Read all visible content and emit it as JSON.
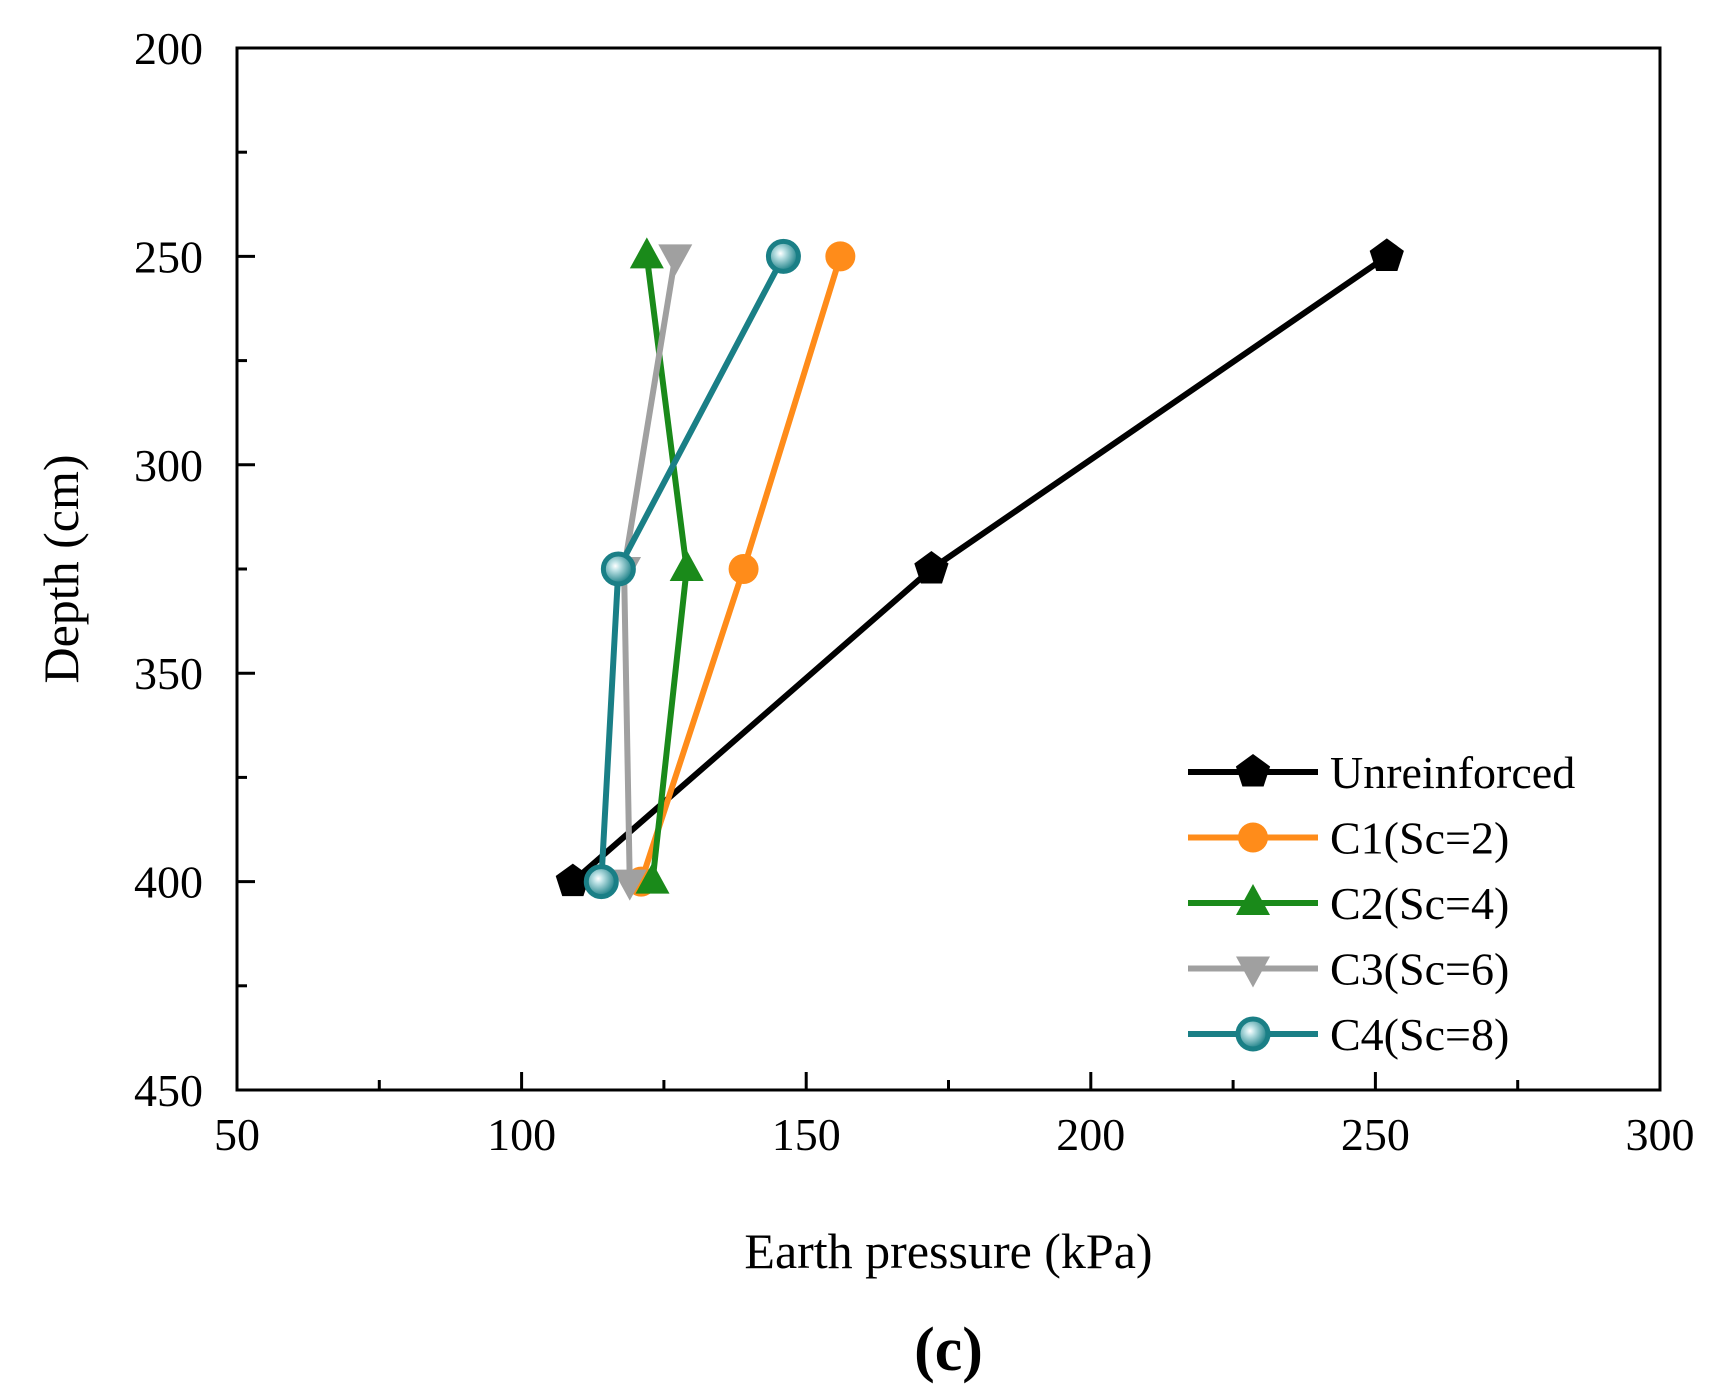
{
  "chart_data": {
    "type": "line",
    "title": "",
    "panel_label": "(c)",
    "xlabel": "Earth pressure (kPa)",
    "ylabel": "Depth (cm)",
    "xlim": [
      50,
      300
    ],
    "ylim": [
      200,
      450
    ],
    "y_inverted": true,
    "x_major_ticks": [
      50,
      100,
      150,
      200,
      250,
      300
    ],
    "x_tick_labels": [
      "50",
      "100",
      "150",
      "200",
      "250",
      "300"
    ],
    "x_minor_ticks": [
      75,
      125,
      175,
      225,
      275
    ],
    "y_major_ticks": [
      200,
      250,
      300,
      350,
      400,
      450
    ],
    "y_tick_labels": [
      "200",
      "250",
      "300",
      "350",
      "400",
      "450"
    ],
    "y_minor_ticks": [
      225,
      275,
      325,
      375,
      425
    ],
    "grid": false,
    "legend_position": "bottom-right",
    "series": [
      {
        "name": "Unreinforced",
        "color": "#000000",
        "marker": "pentagon",
        "x": [
          252,
          172,
          109
        ],
        "y": [
          250,
          325,
          400
        ]
      },
      {
        "name": "C1(Sc=2)",
        "color": "#FF8C1A",
        "marker": "circle",
        "x": [
          156,
          139,
          121
        ],
        "y": [
          250,
          325,
          400
        ]
      },
      {
        "name": "C2(Sc=4)",
        "color": "#1A8A1A",
        "marker": "triangle-up",
        "x": [
          122,
          129,
          123
        ],
        "y": [
          250,
          325,
          400
        ]
      },
      {
        "name": "C3(Sc=6)",
        "color": "#A0A0A0",
        "marker": "triangle-down",
        "x": [
          127,
          118,
          119
        ],
        "y": [
          250,
          325,
          400
        ]
      },
      {
        "name": "C4(Sc=8)",
        "color": "#1A7F86",
        "marker": "sphere",
        "x": [
          146,
          117,
          114
        ],
        "y": [
          250,
          325,
          400
        ]
      }
    ]
  }
}
